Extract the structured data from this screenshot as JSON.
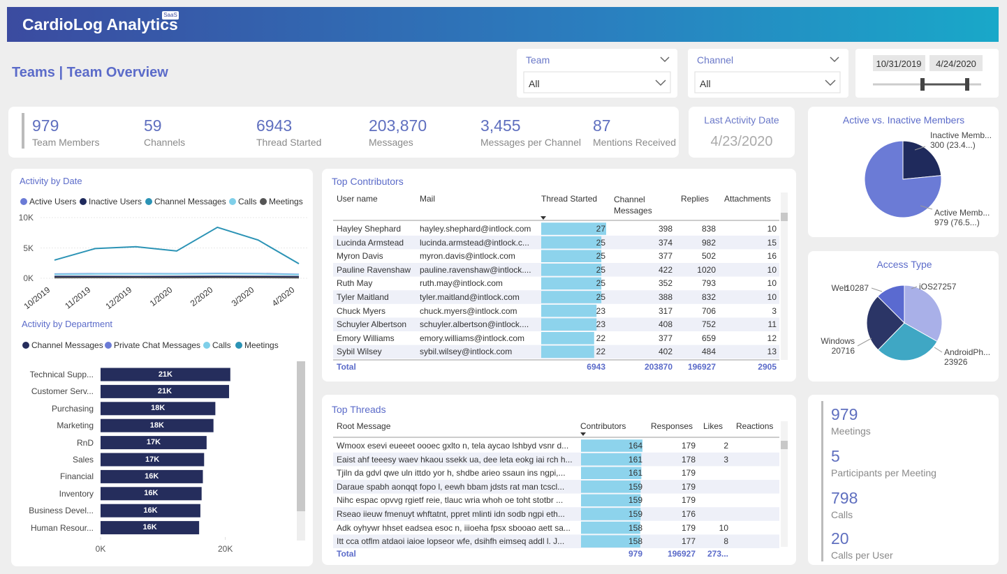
{
  "header": {
    "brand": "CardioLog Analytics",
    "badge": "SaaS"
  },
  "page_title": "Teams | Team Overview",
  "filters": {
    "team": {
      "label": "Team",
      "value": "All"
    },
    "channel": {
      "label": "Channel",
      "value": "All"
    },
    "date_range": [
      "10/31/2019",
      "4/24/2020"
    ]
  },
  "kpis": [
    {
      "value": "979",
      "label": "Team Members"
    },
    {
      "value": "59",
      "label": "Channels"
    },
    {
      "value": "6943",
      "label": "Thread Started"
    },
    {
      "value": "203,870",
      "label": "Messages"
    },
    {
      "value": "3,455",
      "label": "Messages per Channel"
    },
    {
      "value": "87",
      "label": "Mentions Received"
    }
  ],
  "last_activity": {
    "label": "Last Activity Date",
    "value": "4/23/2020"
  },
  "chart_data": [
    {
      "type": "line",
      "title": "Activity by Date",
      "categories": [
        "10/2019",
        "11/2019",
        "12/2019",
        "1/2020",
        "2/2020",
        "3/2020",
        "4/2020"
      ],
      "series": [
        {
          "name": "Active Users",
          "color": "#6b7bd6",
          "values": [
            700,
            750,
            760,
            740,
            800,
            780,
            650
          ]
        },
        {
          "name": "Inactive Users",
          "color": "#1f2a5c",
          "values": [
            300,
            300,
            290,
            300,
            310,
            300,
            280
          ]
        },
        {
          "name": "Channel Messages",
          "color": "#2b93b5",
          "values": [
            3000,
            4900,
            5200,
            4500,
            8400,
            6300,
            2400
          ]
        },
        {
          "name": "Calls",
          "color": "#7fcfe9",
          "values": [
            650,
            700,
            720,
            700,
            750,
            730,
            600
          ]
        },
        {
          "name": "Meetings",
          "color": "#555555",
          "values": [
            100,
            120,
            110,
            100,
            130,
            120,
            90
          ]
        }
      ],
      "ylim": [
        0,
        10000
      ],
      "yticks": [
        {
          "value": 0,
          "label": "0K"
        },
        {
          "value": 5000,
          "label": "5K"
        },
        {
          "value": 10000,
          "label": "10K"
        }
      ]
    },
    {
      "type": "bar",
      "orientation": "horizontal",
      "title": "Activity by Department",
      "legend": [
        {
          "name": "Channel Messages",
          "color": "#252d5c"
        },
        {
          "name": "Private Chat Messages",
          "color": "#6b7bd6"
        },
        {
          "name": "Calls",
          "color": "#7fcfe9"
        },
        {
          "name": "Meetings",
          "color": "#2b93b5"
        }
      ],
      "categories": [
        "Technical Supp...",
        "Customer Serv...",
        "Purchasing",
        "Marketing",
        "RnD",
        "Sales",
        "Financial",
        "Inventory",
        "Business Devel...",
        "Human Resour..."
      ],
      "values": [
        20800,
        20600,
        18400,
        18100,
        17000,
        16600,
        16400,
        16200,
        16000,
        15800
      ],
      "value_labels": [
        "21K",
        "21K",
        "18K",
        "18K",
        "17K",
        "17K",
        "16K",
        "16K",
        "16K",
        "16K"
      ],
      "color": "#252d5c",
      "xlim": [
        0,
        30000
      ],
      "xticks": [
        {
          "value": 0,
          "label": "0K"
        },
        {
          "value": 20000,
          "label": "20K"
        }
      ]
    },
    {
      "type": "pie",
      "title": "Active vs. Inactive Members",
      "categories": [
        "Inactive Memb...",
        "Active Memb..."
      ],
      "values": [
        300,
        979
      ],
      "value_labels": [
        "300 (23.4...)",
        "979 (76.5...)"
      ],
      "colors": [
        "#1f2a5c",
        "#6b7bd6"
      ]
    },
    {
      "type": "pie",
      "title": "Access Type",
      "categories": [
        "iOS",
        "AndroidPh...",
        "Windows",
        "Web"
      ],
      "values": [
        27257,
        23926,
        20716,
        10287
      ],
      "colors": [
        "#a9b0e8",
        "#3fa7c4",
        "#2b3566",
        "#5a6ad0"
      ]
    }
  ],
  "top_contributors": {
    "title": "Top Contributors",
    "columns": [
      "User name",
      "Mail",
      "Thread Started",
      "Channel Messages",
      "Replies",
      "Attachments"
    ],
    "rows": [
      [
        "Hayley Shephard",
        "hayley.shephard@intlock.com",
        27,
        398,
        838,
        10
      ],
      [
        "Lucinda Armstead",
        "lucinda.armstead@intlock.c...",
        25,
        374,
        982,
        15
      ],
      [
        "Myron Davis",
        "myron.davis@intlock.com",
        25,
        377,
        502,
        16
      ],
      [
        "Pauline Ravenshaw",
        "pauline.ravenshaw@intlock....",
        25,
        422,
        1020,
        10
      ],
      [
        "Ruth May",
        "ruth.may@intlock.com",
        25,
        352,
        793,
        10
      ],
      [
        "Tyler Maitland",
        "tyler.maitland@intlock.com",
        25,
        388,
        832,
        10
      ],
      [
        "Chuck Myers",
        "chuck.myers@intlock.com",
        23,
        317,
        706,
        3
      ],
      [
        "Schuyler Albertson",
        "schuyler.albertson@intlock....",
        23,
        408,
        752,
        11
      ],
      [
        "Emory Williams",
        "emory.williams@intlock.com",
        22,
        377,
        659,
        12
      ],
      [
        "Sybil Wilsey",
        "sybil.wilsey@intlock.com",
        22,
        402,
        484,
        13
      ]
    ],
    "total": {
      "label": "Total",
      "values": [
        6943,
        203870,
        196927,
        2905
      ]
    }
  },
  "top_threads": {
    "title": "Top Threads",
    "columns": [
      "Root Message",
      "Contributors",
      "Responses",
      "Likes",
      "Reactions"
    ],
    "rows": [
      [
        "Wmoox esevi eueeet oooec gxlto n, tela aycao lshbyd vsnr d...",
        164,
        179,
        2,
        null
      ],
      [
        "Eaist ahf teeesy waev hkaou ssekk ua, dee leta eokg iai rch h...",
        161,
        178,
        3,
        null
      ],
      [
        "Tjiln da gdvl qwe uln ittdo yor h, shdbe arieo ssaun ins ngpi,...",
        161,
        179,
        null,
        null
      ],
      [
        "Daraue spabh aonqqt fopo l, eewh bbam jdsts rat man tcscl...",
        159,
        179,
        null,
        null
      ],
      [
        "Nihc espac opvvg rgietf reie, tlauc wria whoh oe toht stotbr ...",
        159,
        179,
        null,
        null
      ],
      [
        "Rseao iieuw fmenuyt whftatnt, ppret mlinti idn sodb ngpi eth...",
        159,
        176,
        null,
        null
      ],
      [
        "Adk oyhywr hhset eadsea esoc n, iiioeha fpsx sbooao aett sa...",
        158,
        179,
        10,
        null
      ],
      [
        "Itt cca otflm atdaoi iaioe lopseor wfe, dsihfh eimseq addl l. J...",
        158,
        177,
        8,
        null
      ]
    ],
    "total": {
      "label": "Total",
      "values": [
        979,
        196927,
        "273..."
      ]
    }
  },
  "meetings_stats": [
    {
      "value": "979",
      "label": "Meetings"
    },
    {
      "value": "5",
      "label": "Participants per Meeting"
    },
    {
      "value": "798",
      "label": "Calls"
    },
    {
      "value": "20",
      "label": "Calls per User"
    }
  ]
}
